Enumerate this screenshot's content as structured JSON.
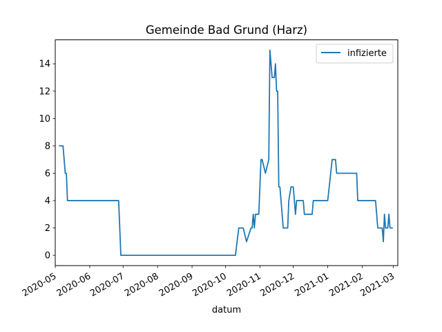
{
  "chart_data": {
    "type": "line",
    "title": "Gemeinde Bad Grund (Harz)",
    "xlabel": "datum",
    "ylabel": "",
    "xlim": [
      "2020-05-01",
      "2021-03-05"
    ],
    "ylim": [
      -0.75,
      15.75
    ],
    "x_ticks": [
      "2020-05-01",
      "2020-06-01",
      "2020-07-01",
      "2020-08-01",
      "2020-09-01",
      "2020-10-01",
      "2020-11-01",
      "2020-12-01",
      "2021-01-01",
      "2021-02-01",
      "2021-03-01"
    ],
    "x_tick_labels": [
      "2020-05",
      "2020-06",
      "2020-07",
      "2020-08",
      "2020-09",
      "2020-10",
      "2020-11",
      "2020-12",
      "2021-01",
      "2021-02",
      "2021-03"
    ],
    "y_ticks": [
      0,
      2,
      4,
      6,
      8,
      10,
      12,
      14
    ],
    "y_tick_labels": [
      "0",
      "2",
      "4",
      "6",
      "8",
      "10",
      "12",
      "14"
    ],
    "legend": {
      "position": "top-right",
      "entries": [
        "infizierte"
      ]
    },
    "grid": false,
    "series": [
      {
        "name": "infizierte",
        "color": "#1f77b4",
        "points": [
          [
            "2020-05-05",
            8
          ],
          [
            "2020-05-08",
            8
          ],
          [
            "2020-05-10",
            6
          ],
          [
            "2020-05-11",
            6
          ],
          [
            "2020-05-12",
            4
          ],
          [
            "2020-06-27",
            4
          ],
          [
            "2020-06-29",
            0
          ],
          [
            "2020-10-10",
            0
          ],
          [
            "2020-10-13",
            2
          ],
          [
            "2020-10-17",
            2
          ],
          [
            "2020-10-20",
            1
          ],
          [
            "2020-10-24",
            2
          ],
          [
            "2020-10-25",
            2
          ],
          [
            "2020-10-26",
            3
          ],
          [
            "2020-10-27",
            2
          ],
          [
            "2020-10-28",
            3
          ],
          [
            "2020-10-31",
            3
          ],
          [
            "2020-11-02",
            7
          ],
          [
            "2020-11-03",
            7
          ],
          [
            "2020-11-06",
            6
          ],
          [
            "2020-11-09",
            7
          ],
          [
            "2020-11-10",
            15
          ],
          [
            "2020-11-12",
            13
          ],
          [
            "2020-11-14",
            13
          ],
          [
            "2020-11-15",
            14
          ],
          [
            "2020-11-16",
            12
          ],
          [
            "2020-11-17",
            12
          ],
          [
            "2020-11-18",
            5
          ],
          [
            "2020-11-19",
            5
          ],
          [
            "2020-11-22",
            2
          ],
          [
            "2020-11-26",
            2
          ],
          [
            "2020-11-27",
            4
          ],
          [
            "2020-11-29",
            5
          ],
          [
            "2020-12-01",
            5
          ],
          [
            "2020-12-03",
            3
          ],
          [
            "2020-12-04",
            4
          ],
          [
            "2020-12-10",
            4
          ],
          [
            "2020-12-11",
            3
          ],
          [
            "2020-12-18",
            3
          ],
          [
            "2020-12-19",
            4
          ],
          [
            "2021-01-01",
            4
          ],
          [
            "2021-01-05",
            7
          ],
          [
            "2021-01-08",
            7
          ],
          [
            "2021-01-09",
            6
          ],
          [
            "2021-01-27",
            6
          ],
          [
            "2021-01-28",
            4
          ],
          [
            "2021-02-13",
            4
          ],
          [
            "2021-02-15",
            2
          ],
          [
            "2021-02-19",
            2
          ],
          [
            "2021-02-20",
            1
          ],
          [
            "2021-02-21",
            3
          ],
          [
            "2021-02-22",
            2
          ],
          [
            "2021-02-24",
            2
          ],
          [
            "2021-02-25",
            3
          ],
          [
            "2021-02-26",
            2
          ],
          [
            "2021-02-28",
            2
          ]
        ]
      }
    ]
  }
}
